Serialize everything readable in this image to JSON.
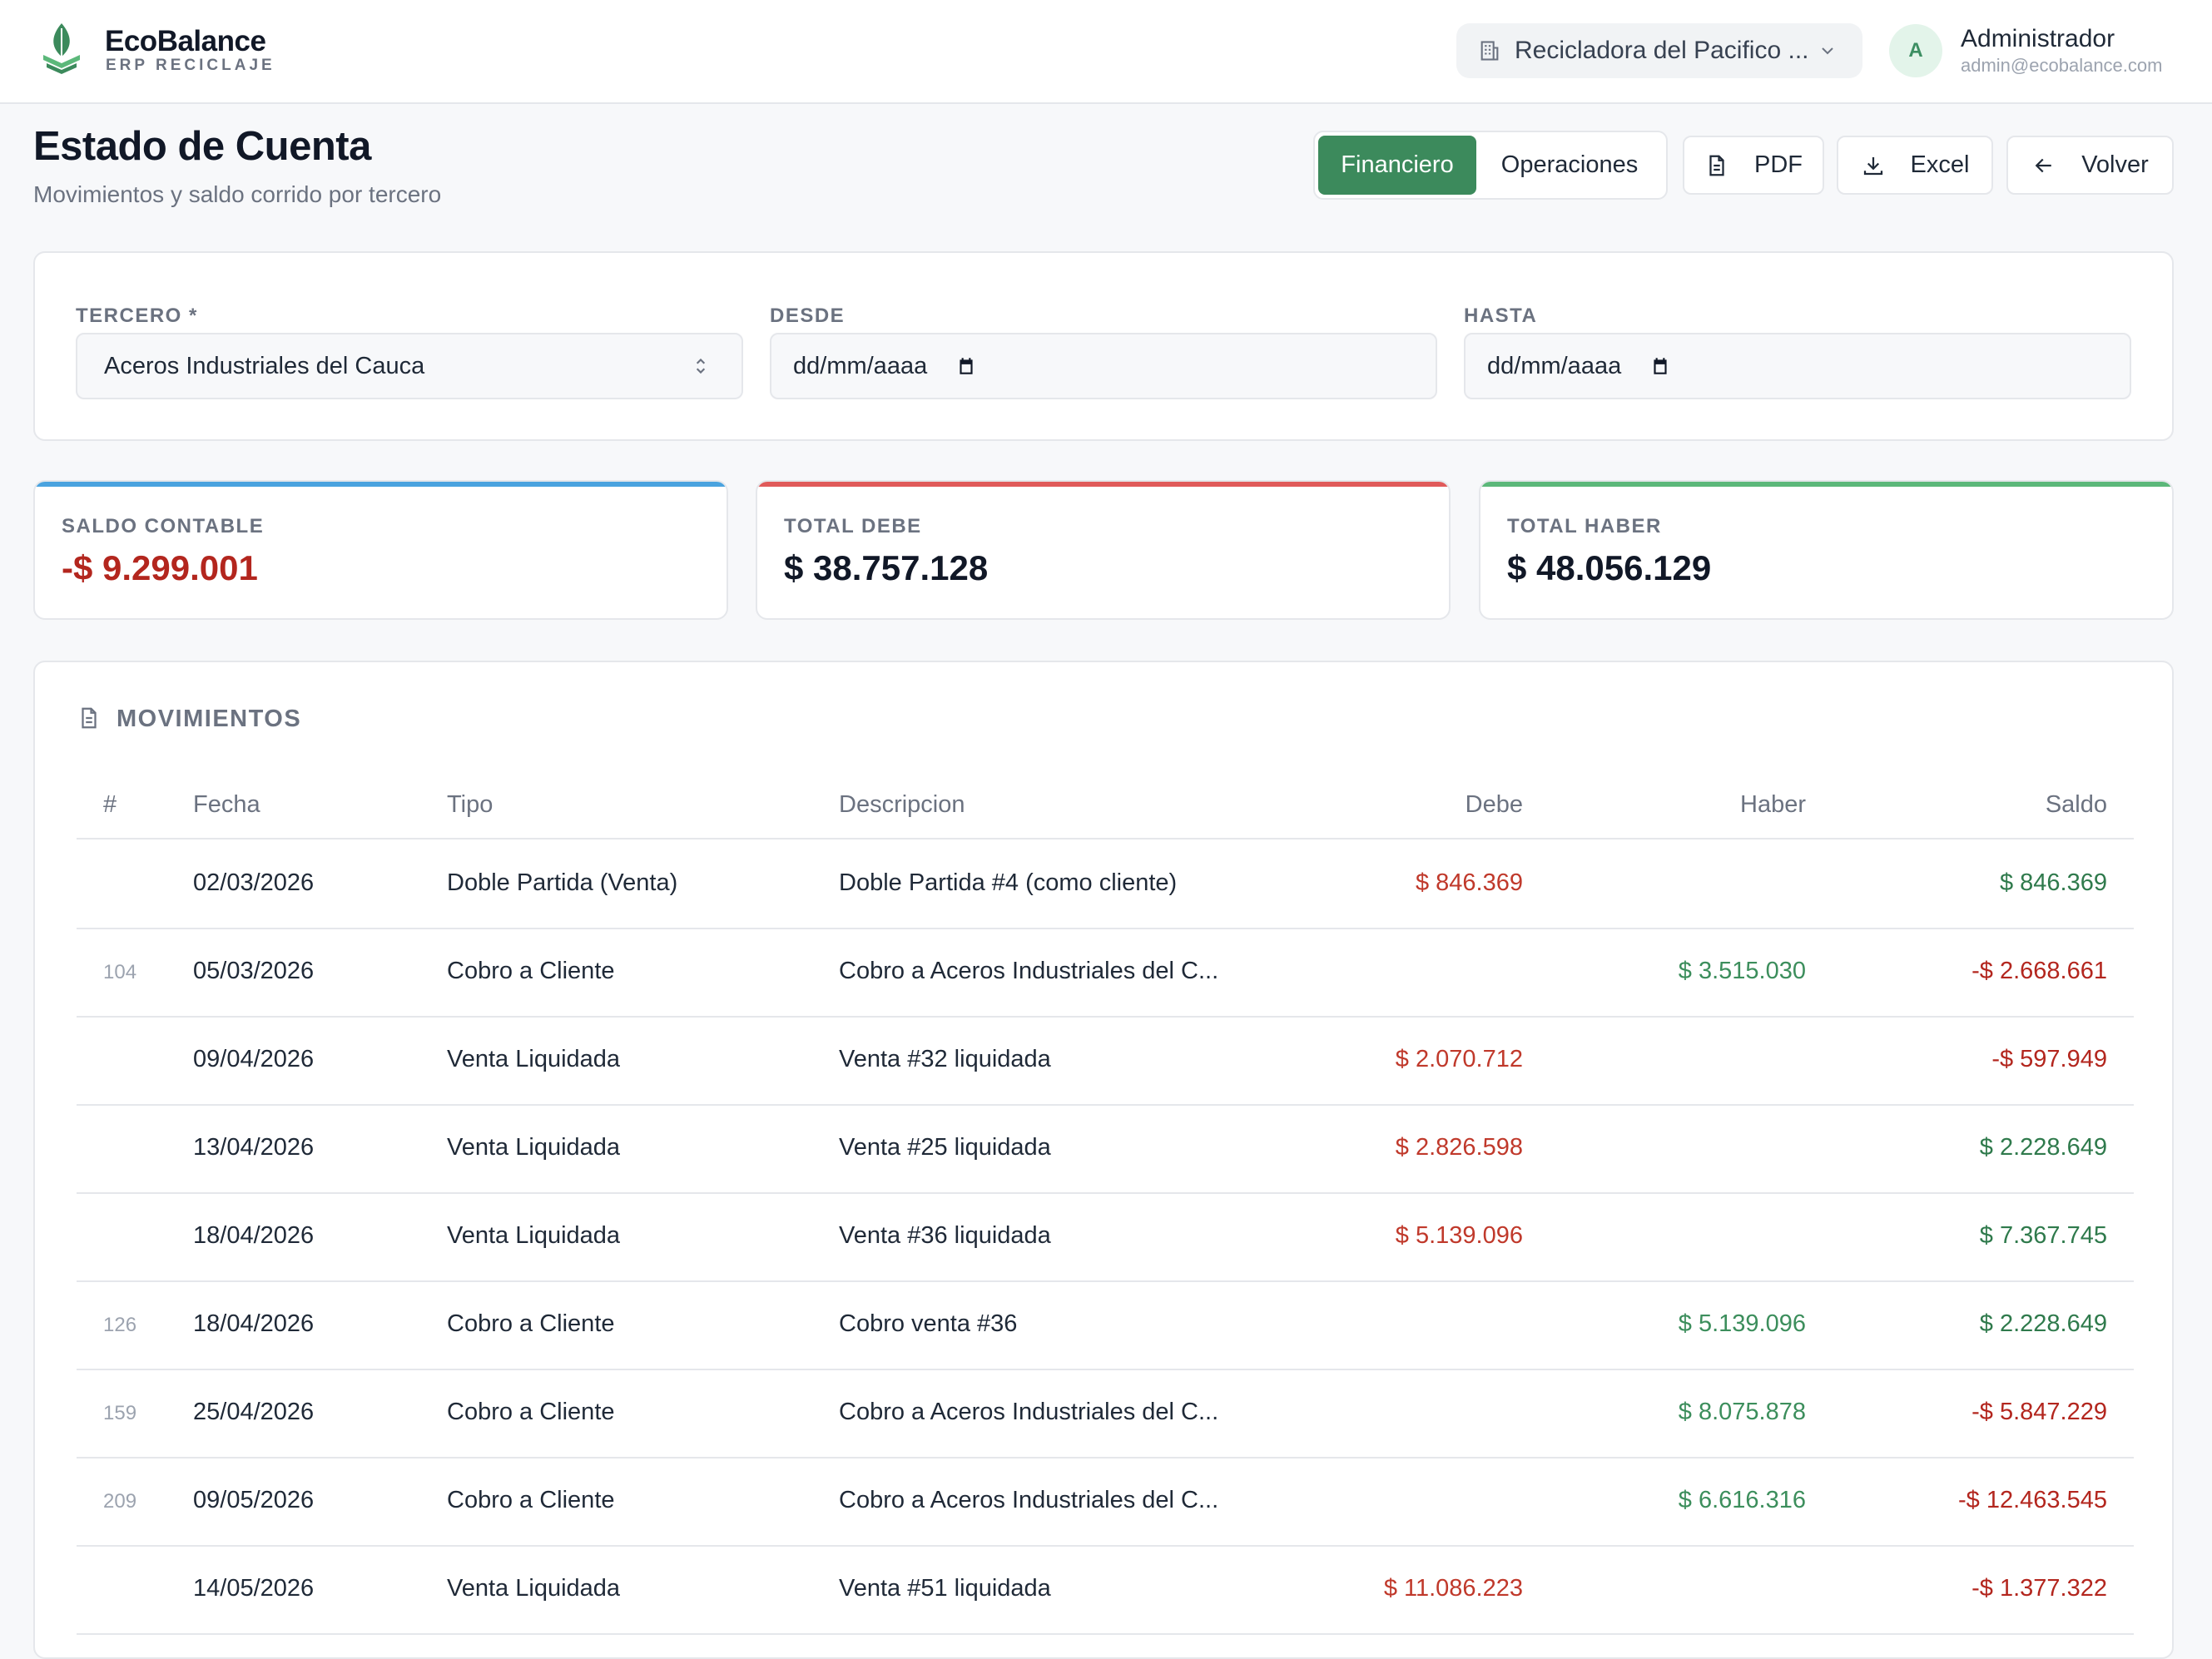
{
  "brand": {
    "name": "EcoBalance",
    "subtitle": "ERP RECICLAJE"
  },
  "header": {
    "company": "Recicladora del Pacifico ...",
    "user": {
      "initial": "A",
      "name": "Administrador",
      "email": "admin@ecobalance.com"
    }
  },
  "page": {
    "title": "Estado de Cuenta",
    "subtitle": "Movimientos y saldo corrido por tercero"
  },
  "toolbar": {
    "view_financiero": "Financiero",
    "view_operaciones": "Operaciones",
    "pdf": "PDF",
    "excel": "Excel",
    "volver": "Volver"
  },
  "filters": {
    "tercero_label": "TERCERO *",
    "tercero_value": "Aceros Industriales del Cauca",
    "desde_label": "DESDE",
    "desde_value": "dd/mm/aaaa",
    "hasta_label": "HASTA",
    "hasta_value": "dd/mm/aaaa"
  },
  "stats": {
    "saldo_label": "SALDO CONTABLE",
    "saldo_value": "-$ 9.299.001",
    "debe_label": "TOTAL DEBE",
    "debe_value": "$ 38.757.128",
    "haber_label": "TOTAL HABER",
    "haber_value": "$ 48.056.129"
  },
  "colors": {
    "accent": "#3c8a5c",
    "saldo_bar": "#4aa3df",
    "debe_bar": "#e05a5a",
    "haber_bar": "#5cb87a"
  },
  "movements": {
    "title": "MOVIMIENTOS",
    "columns": {
      "num": "#",
      "fecha": "Fecha",
      "tipo": "Tipo",
      "descripcion": "Descripcion",
      "debe": "Debe",
      "haber": "Haber",
      "saldo": "Saldo"
    },
    "rows": [
      {
        "num": "",
        "fecha": "02/03/2026",
        "tipo": "Doble Partida (Venta)",
        "descripcion": "Doble Partida #4 (como cliente)",
        "debe": "$ 846.369",
        "haber": "",
        "saldo": "$ 846.369"
      },
      {
        "num": "104",
        "fecha": "05/03/2026",
        "tipo": "Cobro a Cliente",
        "descripcion": "Cobro a Aceros Industriales del C...",
        "debe": "",
        "haber": "$ 3.515.030",
        "saldo": "-$ 2.668.661"
      },
      {
        "num": "",
        "fecha": "09/04/2026",
        "tipo": "Venta Liquidada",
        "descripcion": "Venta #32 liquidada",
        "debe": "$ 2.070.712",
        "haber": "",
        "saldo": "-$ 597.949"
      },
      {
        "num": "",
        "fecha": "13/04/2026",
        "tipo": "Venta Liquidada",
        "descripcion": "Venta #25 liquidada",
        "debe": "$ 2.826.598",
        "haber": "",
        "saldo": "$ 2.228.649"
      },
      {
        "num": "",
        "fecha": "18/04/2026",
        "tipo": "Venta Liquidada",
        "descripcion": "Venta #36 liquidada",
        "debe": "$ 5.139.096",
        "haber": "",
        "saldo": "$ 7.367.745"
      },
      {
        "num": "126",
        "fecha": "18/04/2026",
        "tipo": "Cobro a Cliente",
        "descripcion": "Cobro venta #36",
        "debe": "",
        "haber": "$ 5.139.096",
        "saldo": "$ 2.228.649"
      },
      {
        "num": "159",
        "fecha": "25/04/2026",
        "tipo": "Cobro a Cliente",
        "descripcion": "Cobro a Aceros Industriales del C...",
        "debe": "",
        "haber": "$ 8.075.878",
        "saldo": "-$ 5.847.229"
      },
      {
        "num": "209",
        "fecha": "09/05/2026",
        "tipo": "Cobro a Cliente",
        "descripcion": "Cobro a Aceros Industriales del C...",
        "debe": "",
        "haber": "$ 6.616.316",
        "saldo": "-$ 12.463.545"
      },
      {
        "num": "",
        "fecha": "14/05/2026",
        "tipo": "Venta Liquidada",
        "descripcion": "Venta #51 liquidada",
        "debe": "$ 11.086.223",
        "haber": "",
        "saldo": "-$ 1.377.322"
      }
    ]
  }
}
